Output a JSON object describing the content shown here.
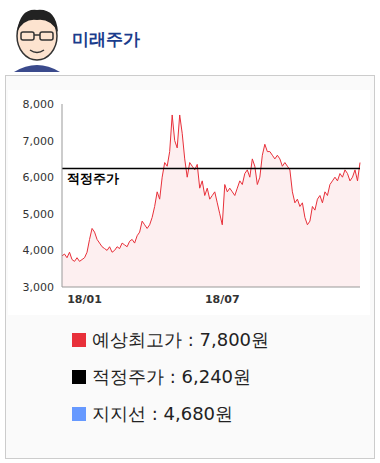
{
  "chart_data": {
    "type": "area",
    "title": "미래주가",
    "color": "#e8303a",
    "categories": [
      null,
      null,
      null,
      null,
      null,
      null,
      null,
      null,
      null,
      "18/01",
      null,
      null,
      null,
      null,
      null,
      null,
      null,
      null,
      null,
      null,
      null,
      null,
      null,
      null,
      null,
      null,
      null,
      null,
      null,
      null,
      null,
      null,
      null,
      null,
      null,
      null,
      null,
      null,
      null,
      null,
      null,
      null,
      null,
      null,
      null,
      null,
      null,
      null,
      null,
      null,
      null,
      null,
      null,
      null,
      null,
      null,
      null,
      null,
      null,
      null,
      null,
      null,
      null,
      null,
      "18/07",
      null,
      null,
      null,
      null,
      null,
      null,
      null,
      null,
      null,
      null,
      null,
      null,
      null,
      null,
      null,
      null,
      null,
      null,
      null,
      null,
      null,
      null,
      null,
      null,
      null,
      null,
      null,
      null,
      null,
      null,
      null,
      null,
      null,
      null,
      null,
      null,
      null,
      null,
      null,
      null,
      null,
      null,
      null,
      null,
      null,
      null,
      null,
      null,
      null,
      null,
      null,
      null,
      null,
      null,
      null
    ],
    "values": [
      3850,
      3900,
      3800,
      3950,
      3750,
      3700,
      3800,
      3700,
      3750,
      3800,
      3950,
      4300,
      4600,
      4500,
      4300,
      4200,
      4100,
      4050,
      4000,
      4100,
      3950,
      4000,
      4100,
      4050,
      4200,
      4150,
      4100,
      4250,
      4300,
      4200,
      4400,
      4500,
      4800,
      4700,
      4600,
      4700,
      4900,
      5200,
      5600,
      5400,
      6000,
      6400,
      6300,
      6700,
      7700,
      7000,
      6800,
      7700,
      7200,
      6500,
      6000,
      6400,
      6300,
      6200,
      6350,
      5700,
      5900,
      5500,
      5700,
      5400,
      5500,
      5600,
      5300,
      5000,
      4700,
      5800,
      5600,
      5700,
      5600,
      5500,
      5700,
      5900,
      5800,
      6100,
      6200,
      6000,
      6500,
      6300,
      5800,
      6000,
      6600,
      6900,
      6700,
      6700,
      6600,
      6500,
      6600,
      6500,
      6300,
      6400,
      6300,
      6200,
      5600,
      5300,
      5400,
      5200,
      5300,
      4900,
      4700,
      4800,
      5200,
      5100,
      5400,
      5500,
      5300,
      5600,
      5500,
      5800,
      5900,
      6000,
      5900,
      6100,
      6000,
      6200,
      6100,
      5900,
      6000,
      6200,
      5900,
      6400
    ],
    "ylim": [
      3000,
      8000
    ],
    "yticks": [
      {
        "value": 3000,
        "label": "3,000"
      },
      {
        "value": 4000,
        "label": "4,000"
      },
      {
        "value": 5000,
        "label": "5,000"
      },
      {
        "value": 6000,
        "label": "6,000"
      },
      {
        "value": 7000,
        "label": "7,000"
      },
      {
        "value": 8000,
        "label": "8,000"
      }
    ],
    "grid": false,
    "reference_lines": [
      {
        "label": "적정주가",
        "value": 6240,
        "color": "#000000"
      }
    ],
    "legend_items": [
      {
        "text": "예상최고가 : 7,800원",
        "color": "#e8303a"
      },
      {
        "text": "적정주가 : 6,240원",
        "color": "#000000"
      },
      {
        "text": "지지선 : 4,680원",
        "color": "#6699ff"
      }
    ]
  }
}
